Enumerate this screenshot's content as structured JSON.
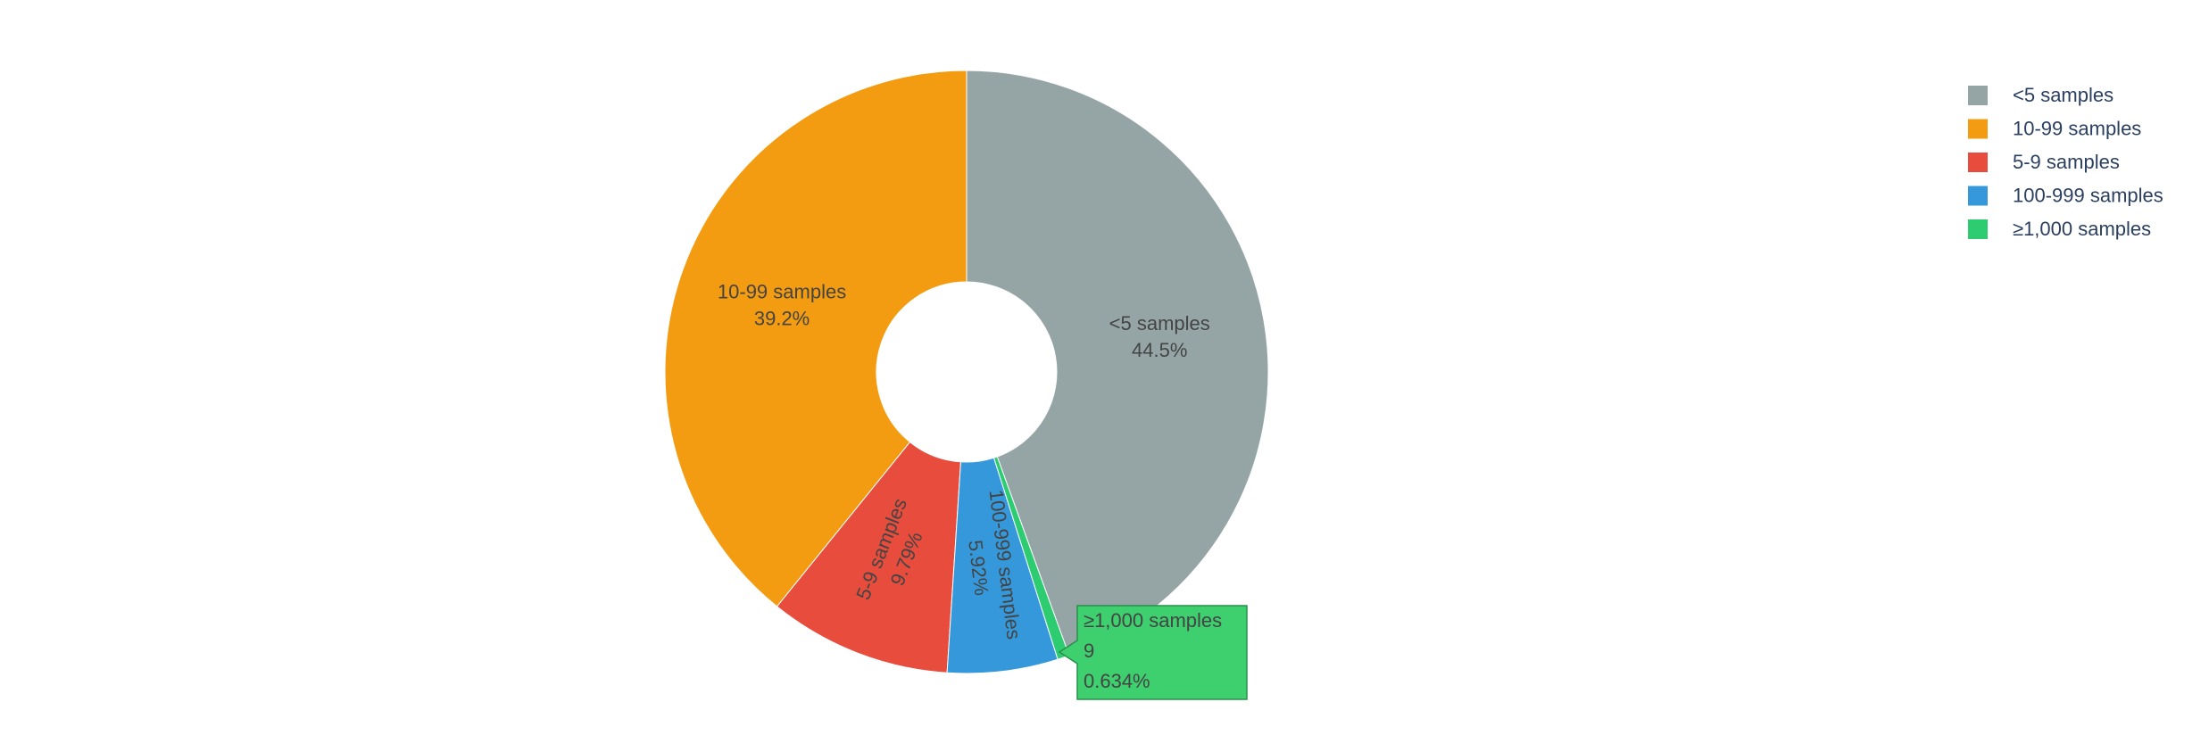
{
  "chart_data": {
    "type": "pie",
    "hole": true,
    "direction": "counterclockwise",
    "categories": [
      "<5 samples",
      "10-99 samples",
      "5-9 samples",
      "100-999 samples",
      "≥1,000 samples"
    ],
    "values": [
      44.5,
      39.2,
      9.79,
      5.92,
      0.634
    ],
    "value_labels": [
      "44.5%",
      "39.2%",
      "9.79%",
      "5.92%",
      "0.634%"
    ],
    "colors": [
      "#95a5a6",
      "#f39c12",
      "#e74c3c",
      "#3498db",
      "#2ecc71"
    ],
    "legend": "top-right",
    "hover_count": 9
  }
}
